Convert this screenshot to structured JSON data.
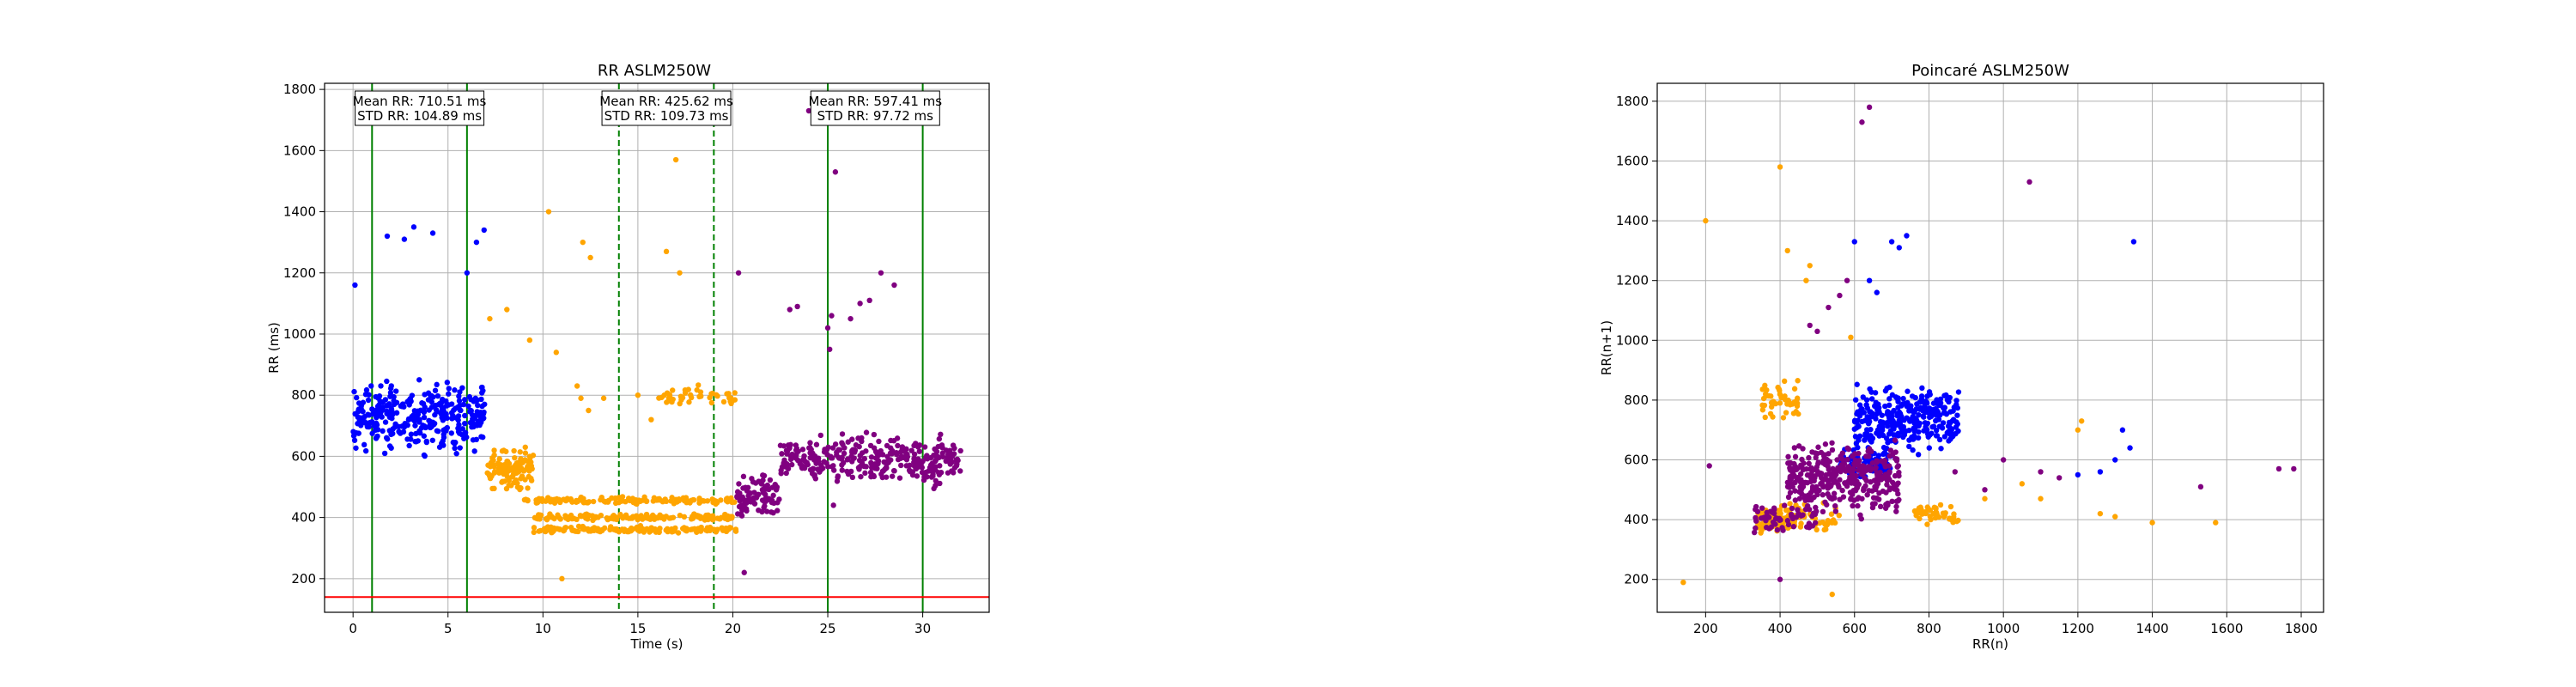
{
  "colors": {
    "segment1": "#0000ff",
    "segment2": "#ffa500",
    "segment3": "#800080",
    "window_solid": "#008000",
    "window_dashed": "#008000",
    "threshold_line": "#ff0000",
    "grid": "#b0b0b0"
  },
  "chart_data": [
    {
      "type": "scatter",
      "title": "RR ASLM250W",
      "xlabel": "Time (s)",
      "ylabel": "RR (ms)",
      "xlim": [
        -1.5,
        33.5
      ],
      "ylim": [
        90,
        1820
      ],
      "xticks": [
        0,
        5,
        10,
        15,
        20,
        25,
        30
      ],
      "yticks": [
        200,
        400,
        600,
        800,
        1000,
        1200,
        1400,
        1600,
        1800
      ],
      "grid": true,
      "threshold": 140,
      "window_lines": [
        {
          "x": 1.0,
          "style": "solid"
        },
        {
          "x": 6.0,
          "style": "solid"
        },
        {
          "x": 14.0,
          "style": "dashed"
        },
        {
          "x": 19.0,
          "style": "dashed"
        },
        {
          "x": 25.0,
          "style": "solid"
        },
        {
          "x": 30.0,
          "style": "solid"
        }
      ],
      "annotations": [
        {
          "x": 3.5,
          "mean": "Mean RR: 710.51 ms",
          "std": "STD RR: 104.89 ms"
        },
        {
          "x": 16.5,
          "mean": "Mean RR: 425.62 ms",
          "std": "STD RR: 109.73 ms"
        },
        {
          "x": 27.5,
          "mean": "Mean RR: 597.41 ms",
          "std": "STD RR: 97.72 ms"
        }
      ],
      "series": [
        {
          "color_key": "segment1",
          "bands": [
            {
              "x": [
                0.0,
                7.0
              ],
              "y": [
                580,
                880
              ],
              "n": 330
            }
          ],
          "points": [
            [
              0.1,
              1160
            ],
            [
              1.8,
              1320
            ],
            [
              2.7,
              1310
            ],
            [
              3.2,
              1350
            ],
            [
              4.2,
              1330
            ],
            [
              6.5,
              1300
            ],
            [
              6.9,
              1340
            ],
            [
              6.0,
              1200
            ]
          ]
        },
        {
          "color_key": "segment2",
          "bands": [
            {
              "x": [
                7.0,
                9.5
              ],
              "y": [
                470,
                650
              ],
              "n": 120
            },
            {
              "x": [
                9.0,
                20.2
              ],
              "y": [
                440,
                470
              ],
              "n": 150
            },
            {
              "x": [
                9.5,
                20.2
              ],
              "y": [
                385,
                415
              ],
              "n": 150
            },
            {
              "x": [
                9.5,
                20.2
              ],
              "y": [
                345,
                375
              ],
              "n": 150
            },
            {
              "x": [
                16.0,
                20.2
              ],
              "y": [
                750,
                840
              ],
              "n": 45
            }
          ],
          "points": [
            [
              7.2,
              1050
            ],
            [
              8.1,
              1080
            ],
            [
              9.3,
              980
            ],
            [
              10.3,
              1400
            ],
            [
              10.7,
              940
            ],
            [
              11.8,
              830
            ],
            [
              12.1,
              1300
            ],
            [
              12.5,
              1250
            ],
            [
              13.2,
              790
            ],
            [
              15.0,
              800
            ],
            [
              15.7,
              720
            ],
            [
              16.5,
              1270
            ],
            [
              17.0,
              1570
            ],
            [
              17.2,
              1200
            ],
            [
              11.0,
              200
            ],
            [
              12.4,
              750
            ],
            [
              12.0,
              790
            ]
          ]
        },
        {
          "color_key": "segment3",
          "bands": [
            {
              "x": [
                20.2,
                22.5
              ],
              "y": [
                380,
                560
              ],
              "n": 90
            },
            {
              "x": [
                22.5,
                32.0
              ],
              "y": [
                480,
                700
              ],
              "n": 330
            }
          ],
          "points": [
            [
              20.3,
              1200
            ],
            [
              20.6,
              220
            ],
            [
              23.0,
              1080
            ],
            [
              23.4,
              1090
            ],
            [
              24.0,
              1730
            ],
            [
              24.5,
              1740
            ],
            [
              25.0,
              1020
            ],
            [
              25.1,
              950
            ],
            [
              25.2,
              1060
            ],
            [
              25.4,
              1530
            ],
            [
              26.2,
              1050
            ],
            [
              26.7,
              1100
            ],
            [
              27.2,
              1110
            ],
            [
              27.8,
              1200
            ],
            [
              28.5,
              1160
            ],
            [
              25.3,
              440
            ]
          ]
        }
      ]
    },
    {
      "type": "scatter",
      "title": "Poincaré ASLM250W",
      "xlabel": "RR(n)",
      "ylabel": "RR(n+1)",
      "xlim": [
        70,
        1860
      ],
      "ylim": [
        90,
        1860
      ],
      "xticks": [
        200,
        400,
        600,
        800,
        1000,
        1200,
        1400,
        1600,
        1800
      ],
      "yticks": [
        200,
        400,
        600,
        800,
        1000,
        1200,
        1400,
        1600,
        1800
      ],
      "grid": true,
      "series": [
        {
          "color_key": "segment2",
          "bands": [
            {
              "x": [
                340,
                440
              ],
              "y": [
                340,
                460
              ],
              "n": 90
            },
            {
              "x": [
                350,
                450
              ],
              "y": [
                720,
                880
              ],
              "n": 45
            },
            {
              "x": [
                400,
                560
              ],
              "y": [
                340,
                470
              ],
              "n": 50
            },
            {
              "x": [
                760,
                880
              ],
              "y": [
                370,
                470
              ],
              "n": 45
            }
          ],
          "points": [
            [
              140,
              190
            ],
            [
              200,
              1400
            ],
            [
              400,
              1580
            ],
            [
              420,
              1300
            ],
            [
              470,
              1200
            ],
            [
              480,
              1250
            ],
            [
              590,
              1010
            ],
            [
              540,
              150
            ],
            [
              1100,
              470
            ],
            [
              1200,
              700
            ],
            [
              1210,
              730
            ],
            [
              1260,
              420
            ],
            [
              1300,
              410
            ],
            [
              1400,
              390
            ],
            [
              1570,
              390
            ],
            [
              1050,
              520
            ],
            [
              950,
              470
            ]
          ]
        },
        {
          "color_key": "segment1",
          "bands": [
            {
              "x": [
                600,
                880
              ],
              "y": [
                600,
                880
              ],
              "n": 300
            },
            {
              "x": [
                560,
                700
              ],
              "y": [
                520,
                650
              ],
              "n": 80
            }
          ],
          "points": [
            [
              600,
              1330
            ],
            [
              640,
              1200
            ],
            [
              660,
              1160
            ],
            [
              700,
              1330
            ],
            [
              720,
              1310
            ],
            [
              740,
              1350
            ],
            [
              1300,
              600
            ],
            [
              1320,
              700
            ],
            [
              1340,
              640
            ],
            [
              1260,
              560
            ],
            [
              1200,
              550
            ],
            [
              1350,
              1330
            ]
          ]
        },
        {
          "color_key": "segment3",
          "bands": [
            {
              "x": [
                420,
                720
              ],
              "y": [
                380,
                700
              ],
              "n": 350
            },
            {
              "x": [
                330,
                500
              ],
              "y": [
                330,
                480
              ],
              "n": 60
            }
          ],
          "points": [
            [
              210,
              580
            ],
            [
              400,
              200
            ],
            [
              480,
              1050
            ],
            [
              500,
              1030
            ],
            [
              530,
              1110
            ],
            [
              560,
              1150
            ],
            [
              580,
              1200
            ],
            [
              620,
              1730
            ],
            [
              640,
              1780
            ],
            [
              1070,
              1530
            ],
            [
              1150,
              540
            ],
            [
              1530,
              510
            ],
            [
              1740,
              570
            ],
            [
              1780,
              570
            ],
            [
              1100,
              560
            ],
            [
              1000,
              600
            ],
            [
              950,
              500
            ],
            [
              870,
              560
            ]
          ]
        }
      ]
    }
  ]
}
